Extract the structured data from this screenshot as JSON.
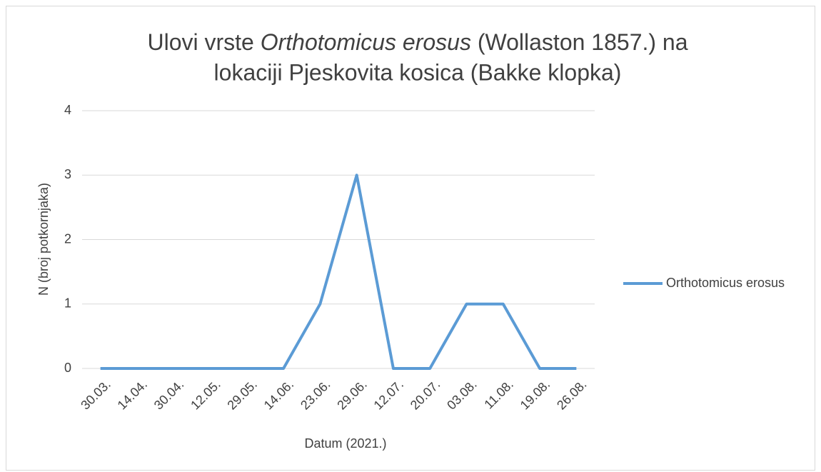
{
  "chart_data": {
    "type": "line",
    "title": [
      "Ulovi vrste ",
      "Orthotomicus erosus",
      " (Wollaston 1857.) na",
      "lokaciji Pjeskovita kosica (Bakke klopka)"
    ],
    "xlabel": "Datum (2021.)",
    "ylabel": "N (broj potkornjaka)",
    "categories": [
      "30.03.",
      "14.04.",
      "30.04.",
      "12.05.",
      "29.05.",
      "14.06.",
      "23.06.",
      "29.06.",
      "12.07.",
      "20.07.",
      "03.08.",
      "11.08.",
      "19.08.",
      "26.08."
    ],
    "series": [
      {
        "name": "Orthotomicus erosus",
        "color": "#5b9bd5",
        "values": [
          0,
          0,
          0,
          0,
          0,
          0,
          1,
          3,
          0,
          0,
          1,
          1,
          0,
          0
        ]
      }
    ],
    "ylim": [
      0,
      4
    ],
    "yticks": [
      0,
      1,
      2,
      3,
      4
    ],
    "grid": true,
    "legend": "right"
  }
}
